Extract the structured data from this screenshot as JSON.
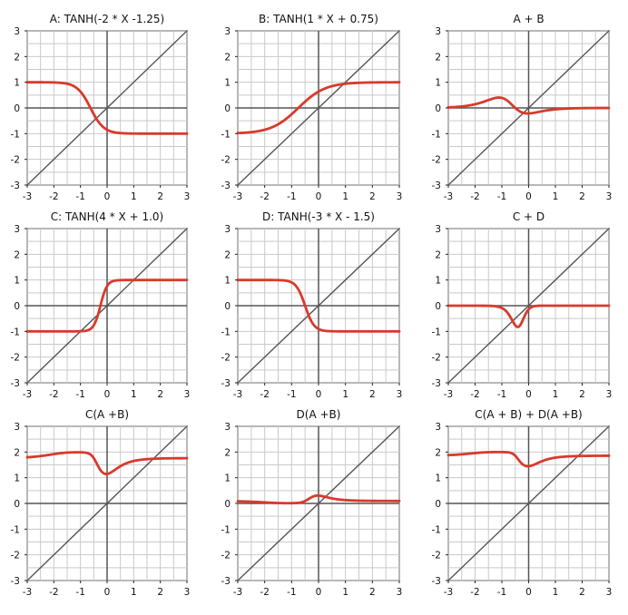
{
  "colors": {
    "curve": "#d83a2c",
    "axis": "#555555",
    "grid": "#c9c9c9",
    "frame": "#222222"
  },
  "chart_data": [
    {
      "type": "line",
      "title": "A: TANH(-2 * X -1.25)",
      "xlim": [
        -3,
        3
      ],
      "ylim": [
        -3,
        3
      ],
      "xticks": [
        "-3",
        "-2",
        "-1",
        "0",
        "1",
        "2",
        "3"
      ],
      "yticks": [
        "-3",
        "-2",
        "-1",
        "0",
        "1",
        "2",
        "3"
      ],
      "grid": true,
      "series": [
        {
          "name": "A",
          "expr": "tanh(-2*x-1.25)"
        }
      ]
    },
    {
      "type": "line",
      "title": "B: TANH(1 * X + 0.75)",
      "xlim": [
        -3,
        3
      ],
      "ylim": [
        -3,
        3
      ],
      "xticks": [
        "-3",
        "-2",
        "-1",
        "0",
        "1",
        "2",
        "3"
      ],
      "yticks": [
        "-3",
        "-2",
        "-1",
        "0",
        "1",
        "2",
        "3"
      ],
      "grid": true,
      "series": [
        {
          "name": "B",
          "expr": "tanh(x+0.75)"
        }
      ]
    },
    {
      "type": "line",
      "title": "A + B",
      "xlim": [
        -3,
        3
      ],
      "ylim": [
        -3,
        3
      ],
      "xticks": [
        "-3",
        "-2",
        "-1",
        "0",
        "1",
        "2",
        "3"
      ],
      "yticks": [
        "-3",
        "-2",
        "-1",
        "0",
        "1",
        "2",
        "3"
      ],
      "grid": true,
      "series": [
        {
          "name": "A + B",
          "expr": "A+B"
        }
      ]
    },
    {
      "type": "line",
      "title": "C: TANH(4 * X + 1.0)",
      "xlim": [
        -3,
        3
      ],
      "ylim": [
        -3,
        3
      ],
      "xticks": [
        "-3",
        "-2",
        "-1",
        "0",
        "1",
        "2",
        "3"
      ],
      "yticks": [
        "-3",
        "-2",
        "-1",
        "0",
        "1",
        "2",
        "3"
      ],
      "grid": true,
      "series": [
        {
          "name": "C",
          "expr": "tanh(4*x+1.0)"
        }
      ]
    },
    {
      "type": "line",
      "title": "D: TANH(-3 * X - 1.5)",
      "xlim": [
        -3,
        3
      ],
      "ylim": [
        -3,
        3
      ],
      "xticks": [
        "-3",
        "-2",
        "-1",
        "0",
        "1",
        "2",
        "3"
      ],
      "yticks": [
        "-3",
        "-2",
        "-1",
        "0",
        "1",
        "2",
        "3"
      ],
      "grid": true,
      "series": [
        {
          "name": "D",
          "expr": "tanh(-3*x-1.5)"
        }
      ]
    },
    {
      "type": "line",
      "title": "C + D",
      "xlim": [
        -3,
        3
      ],
      "ylim": [
        -3,
        3
      ],
      "xticks": [
        "-3",
        "-2",
        "-1",
        "0",
        "1",
        "2",
        "3"
      ],
      "yticks": [
        "-3",
        "-2",
        "-1",
        "0",
        "1",
        "2",
        "3"
      ],
      "grid": true,
      "series": [
        {
          "name": "C + D",
          "expr": "C+D"
        }
      ]
    },
    {
      "type": "line",
      "title": "C(A +B)",
      "xlim": [
        -3,
        3
      ],
      "ylim": [
        -3,
        3
      ],
      "xticks": [
        "-3",
        "-2",
        "-1",
        "0",
        "1",
        "2",
        "3"
      ],
      "yticks": [
        "-3",
        "-2",
        "-1",
        "0",
        "1",
        "2",
        "3"
      ],
      "grid": true,
      "series": [
        {
          "name": "C(A+B)",
          "expr": "C(A+B)+1"
        }
      ]
    },
    {
      "type": "line",
      "title": "D(A +B)",
      "xlim": [
        -3,
        3
      ],
      "ylim": [
        -3,
        3
      ],
      "xticks": [
        "-3",
        "-2",
        "-1",
        "0",
        "1",
        "2",
        "3"
      ],
      "yticks": [
        "-3",
        "-2",
        "-1",
        "0",
        "1",
        "2",
        "3"
      ],
      "grid": true,
      "series": [
        {
          "name": "D(A+B)",
          "expr": "D(A+B)+1"
        }
      ]
    },
    {
      "type": "line",
      "title": "C(A + B) + D(A +B)",
      "xlim": [
        -3,
        3
      ],
      "ylim": [
        -3,
        3
      ],
      "xticks": [
        "-3",
        "-2",
        "-1",
        "0",
        "1",
        "2",
        "3"
      ],
      "yticks": [
        "-3",
        "-2",
        "-1",
        "0",
        "1",
        "2",
        "3"
      ],
      "grid": true,
      "series": [
        {
          "name": "C(A+B)+D(A+B)",
          "expr": "C(A+B)+D(A+B)+2"
        }
      ]
    }
  ]
}
